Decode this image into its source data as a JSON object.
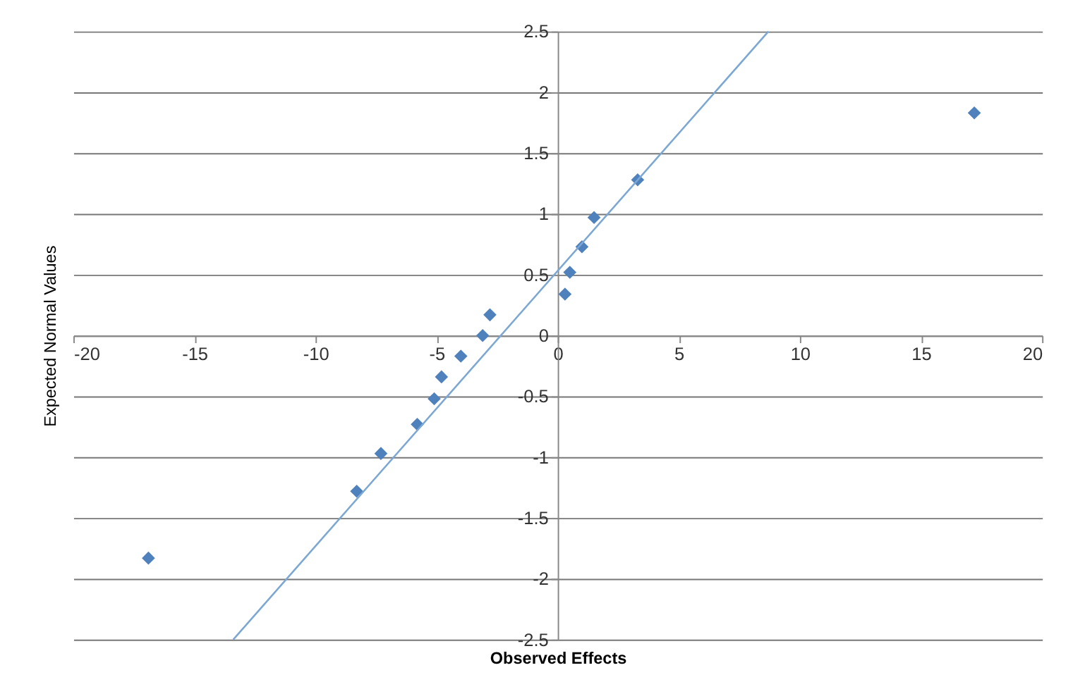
{
  "chart_data": {
    "type": "scatter",
    "xlabel": "Observed Effects",
    "ylabel": "Expected Normal Values",
    "xlim": [
      -20,
      20
    ],
    "xticks": [
      -20,
      -15,
      -10,
      -5,
      0,
      5,
      10,
      15,
      20
    ],
    "ylim": [
      -2.5,
      2.5
    ],
    "yticks": [
      -2.5,
      -2,
      -1.5,
      -1,
      -0.5,
      0,
      0.5,
      1,
      1.5,
      2,
      2.5
    ],
    "grid": "y",
    "marker": "diamond",
    "series": [
      {
        "color": "#4f81bd",
        "x": [
          -16.9,
          -8.3,
          -7.3,
          -5.8,
          -5.1,
          -4.8,
          -4.0,
          -3.1,
          -2.8,
          0.3,
          0.5,
          1.0,
          1.5,
          3.3,
          17.2
        ],
        "values": [
          -1.83,
          -1.28,
          -0.97,
          -0.73,
          -0.52,
          -0.34,
          -0.17,
          0,
          0.17,
          0.34,
          0.52,
          0.73,
          0.97,
          1.28,
          1.83
        ]
      },
      {
        "type": "line",
        "marker": "none",
        "color": "#7ba7d4",
        "x": [
          -13.4,
          8.7
        ],
        "values": [
          -2.5,
          2.5
        ]
      }
    ]
  }
}
